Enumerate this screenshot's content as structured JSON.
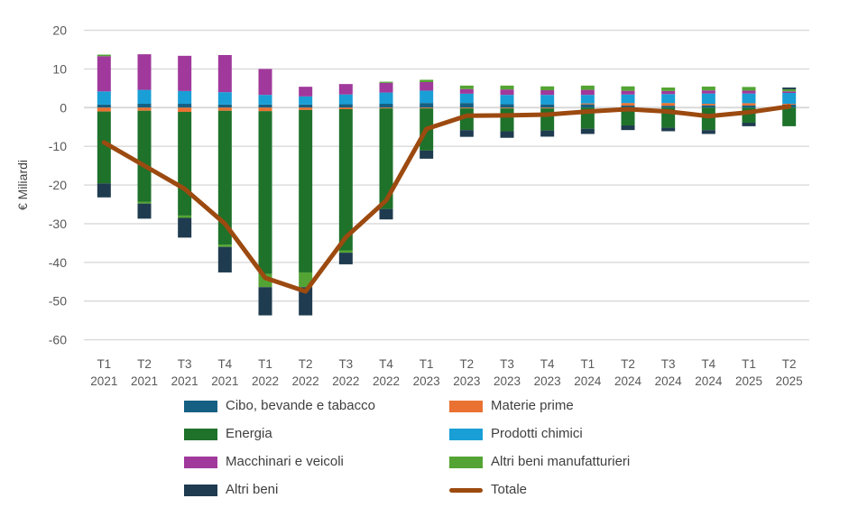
{
  "chart_data": {
    "type": "bar",
    "subtype": "stacked-column-with-line-overlay",
    "title": "",
    "xlabel": "",
    "ylabel": "€ Miliardi",
    "ylim": [
      -60,
      20
    ],
    "yticks": [
      20,
      10,
      0,
      -10,
      -20,
      -30,
      -40,
      -50,
      -60
    ],
    "grid": "horizontal",
    "legend_position": "bottom",
    "categories": [
      "T1 2021",
      "T2 2021",
      "T3 2021",
      "T4 2021",
      "T1 2022",
      "T2 2022",
      "T3 2022",
      "T4 2022",
      "T1 2023",
      "T2 2023",
      "T3 2023",
      "T4 2023",
      "T1 2024",
      "T2 2024",
      "T3 2024",
      "T4 2024",
      "T1 2025",
      "T2 2025"
    ],
    "series": [
      {
        "name": "Cibo, bevande e tabacco",
        "color": "#156082",
        "values": [
          0.8,
          1.0,
          1.0,
          0.8,
          0.8,
          0.8,
          0.9,
          1.0,
          1.2,
          1.2,
          0.9,
          0.85,
          0.85,
          0.55,
          0.5,
          0.6,
          0.55,
          0.8
        ]
      },
      {
        "name": "Materie prime",
        "color": "#E97132",
        "values": [
          -1.0,
          -0.8,
          -1.1,
          -0.8,
          -0.9,
          -0.6,
          -0.4,
          -0.2,
          -0.2,
          -0.2,
          -0.2,
          -0.2,
          0.25,
          0.65,
          0.7,
          0.4,
          0.6,
          0.2
        ]
      },
      {
        "name": "Energia",
        "color": "#1E722A",
        "values": [
          -18.6,
          -23.5,
          -26.8,
          -34.6,
          -42.1,
          -42.0,
          -36.5,
          -26.0,
          -10.9,
          -5.6,
          -5.9,
          -5.7,
          -5.45,
          -4.6,
          -5.2,
          -5.8,
          -3.9,
          -4.8
        ]
      },
      {
        "name": "Prodotti chimici",
        "color": "#199FD6",
        "values": [
          3.4,
          3.6,
          3.3,
          3.2,
          2.5,
          2.1,
          2.5,
          2.9,
          3.2,
          2.4,
          2.4,
          2.45,
          2.2,
          2.2,
          2.3,
          2.65,
          2.5,
          2.8
        ]
      },
      {
        "name": "Macchinari e veicoli",
        "color": "#A0399B",
        "values": [
          9.1,
          9.2,
          9.1,
          9.6,
          6.7,
          2.5,
          2.7,
          2.5,
          2.2,
          1.2,
          1.4,
          1.2,
          1.3,
          0.95,
          0.8,
          0.8,
          0.75,
          0.4
        ]
      },
      {
        "name": "Altri beni manufatturieri",
        "color": "#53A434",
        "values": [
          0.4,
          -0.5,
          -0.6,
          -0.6,
          -3.4,
          -3.8,
          -0.6,
          0.3,
          0.6,
          0.9,
          1.0,
          1.0,
          1.1,
          1.15,
          0.9,
          1.0,
          0.95,
          0.55
        ]
      },
      {
        "name": "Altri beni",
        "color": "#1F3B4F",
        "values": [
          -3.6,
          -3.9,
          -5.1,
          -6.6,
          -7.3,
          -7.3,
          -3.0,
          -2.7,
          -2.1,
          -1.75,
          -1.7,
          -1.6,
          -1.35,
          -1.2,
          -0.9,
          -1.0,
          -0.9,
          0.45
        ]
      }
    ],
    "line": {
      "name": "Totale",
      "color": "#9C4A10",
      "values": [
        -9,
        -15,
        -21,
        -30,
        -44,
        -47.5,
        -33.5,
        -24,
        -5.5,
        -2.1,
        -2.0,
        -1.8,
        -1.0,
        -0.4,
        -1.0,
        -2.2,
        -1.2,
        0.3
      ]
    }
  }
}
